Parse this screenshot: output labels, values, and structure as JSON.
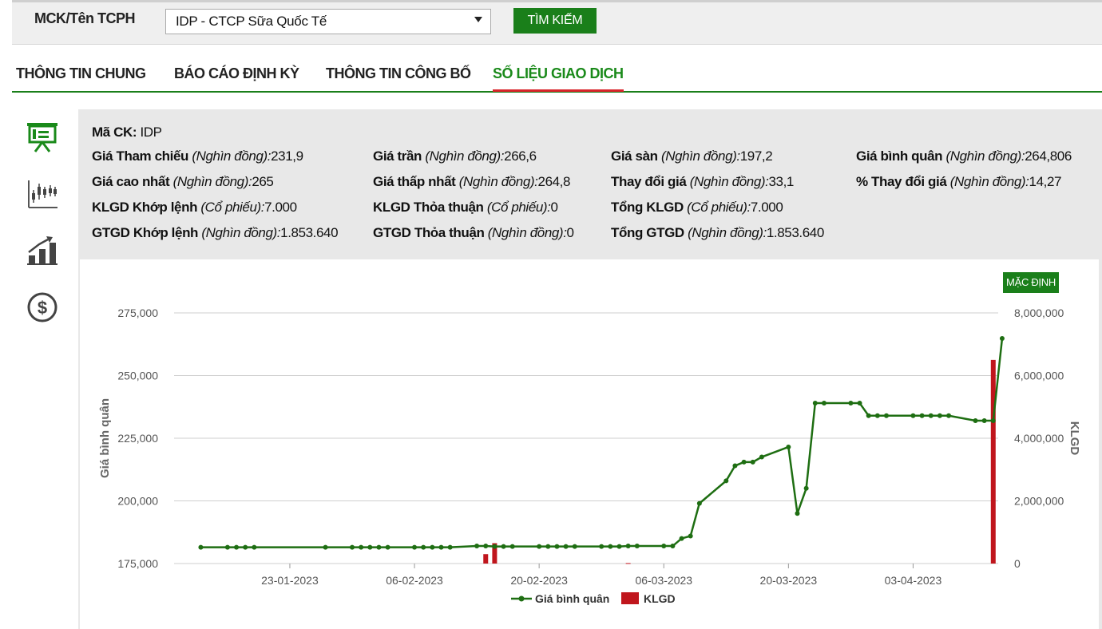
{
  "search": {
    "label": "MCK/Tên TCPH",
    "selected": "IDP - CTCP Sữa Quốc Tế",
    "button": "TÌM KIẾM"
  },
  "tabs": [
    {
      "label": "THÔNG TIN CHUNG",
      "active": false
    },
    {
      "label": "BÁO CÁO ĐỊNH KỲ",
      "active": false
    },
    {
      "label": "THÔNG TIN CÔNG BỐ",
      "active": false
    },
    {
      "label": "SỐ LIỆU GIAO DỊCH",
      "active": true
    }
  ],
  "sidebar_icons": [
    "presentation-board-icon",
    "candlestick-chart-icon",
    "bar-growth-chart-icon",
    "dollar-coin-icon"
  ],
  "info": {
    "ma_ck": {
      "label": "Mã CK:",
      "value": "IDP"
    },
    "rows": [
      [
        {
          "label": "Giá Tham chiếu",
          "unit": "(Nghìn đồng):",
          "value": "231,9"
        },
        {
          "label": "Giá trần",
          "unit": "(Nghìn đồng):",
          "value": "266,6"
        },
        {
          "label": "Giá sàn",
          "unit": "(Nghìn đồng):",
          "value": "197,2"
        },
        {
          "label": "Giá bình quân",
          "unit": "(Nghìn đồng):",
          "value": "264,806"
        }
      ],
      [
        {
          "label": "Giá cao nhất",
          "unit": "(Nghìn đồng):",
          "value": "265"
        },
        {
          "label": "Giá thấp nhất",
          "unit": "(Nghìn đồng):",
          "value": "264,8"
        },
        {
          "label": "Thay đổi giá",
          "unit": "(Nghìn đồng):",
          "value": "33,1"
        },
        {
          "label": "% Thay đổi giá",
          "unit": "(Nghìn đồng):",
          "value": "14,27"
        }
      ],
      [
        {
          "label": "KLGD Khớp lệnh",
          "unit": "(Cổ phiếu):",
          "value": "7.000"
        },
        {
          "label": "KLGD Thỏa thuận",
          "unit": "(Cổ phiếu):",
          "value": "0"
        },
        {
          "label": "Tổng KLGD",
          "unit": "(Cổ phiếu):",
          "value": "7.000"
        }
      ],
      [
        {
          "label": "GTGD Khớp lệnh",
          "unit": "(Nghìn đồng):",
          "value": "1.853.640"
        },
        {
          "label": "GTGD Thỏa thuận",
          "unit": "(Nghìn đồng):",
          "value": "0"
        },
        {
          "label": "Tổng GTGD",
          "unit": "(Nghìn đồng):",
          "value": "1.853.640"
        }
      ]
    ]
  },
  "chart_controls": {
    "default_button": "MẶC ĐỊNH"
  },
  "colors": {
    "accent_green": "#1a7f1a",
    "line_green": "#1e6e12",
    "bar_red": "#c0161d",
    "tab_underline": "#d9232a"
  },
  "chart_data": {
    "type": "line+bar",
    "xlabel": "",
    "ylabel": "Giá bình quân",
    "y2label": "KLGD",
    "ylim": [
      175000,
      275000
    ],
    "y2lim": [
      0,
      8000000
    ],
    "yticks": [
      "275,000",
      "250,000",
      "225,000",
      "200,000",
      "175,000"
    ],
    "y2ticks": [
      "8,000,000",
      "6,000,000",
      "4,000,000",
      "2,000,000",
      "0"
    ],
    "xticks": [
      "23-01-2023",
      "06-02-2023",
      "20-02-2023",
      "06-03-2023",
      "20-03-2023",
      "03-04-2023"
    ],
    "legend": [
      "Giá bình quân",
      "KLGD"
    ],
    "legend_position": "bottom",
    "series": [
      {
        "name": "Giá bình quân",
        "kind": "line",
        "points": [
          [
            "2023-01-13",
            181500
          ],
          [
            "2023-01-16",
            181500
          ],
          [
            "2023-01-17",
            181500
          ],
          [
            "2023-01-18",
            181500
          ],
          [
            "2023-01-19",
            181500
          ],
          [
            "2023-01-27",
            181500
          ],
          [
            "2023-01-30",
            181500
          ],
          [
            "2023-01-31",
            181500
          ],
          [
            "2023-02-01",
            181500
          ],
          [
            "2023-02-02",
            181500
          ],
          [
            "2023-02-03",
            181500
          ],
          [
            "2023-02-06",
            181500
          ],
          [
            "2023-02-07",
            181500
          ],
          [
            "2023-02-08",
            181500
          ],
          [
            "2023-02-09",
            181500
          ],
          [
            "2023-02-10",
            181500
          ],
          [
            "2023-02-13",
            182000
          ],
          [
            "2023-02-14",
            182000
          ],
          [
            "2023-02-15",
            181800
          ],
          [
            "2023-02-16",
            181800
          ],
          [
            "2023-02-17",
            181800
          ],
          [
            "2023-02-20",
            181800
          ],
          [
            "2023-02-21",
            181800
          ],
          [
            "2023-02-22",
            181800
          ],
          [
            "2023-02-23",
            181800
          ],
          [
            "2023-02-24",
            181800
          ],
          [
            "2023-02-27",
            181800
          ],
          [
            "2023-02-28",
            181800
          ],
          [
            "2023-03-01",
            181800
          ],
          [
            "2023-03-02",
            182000
          ],
          [
            "2023-03-03",
            182000
          ],
          [
            "2023-03-06",
            182000
          ],
          [
            "2023-03-07",
            182000
          ],
          [
            "2023-03-08",
            185000
          ],
          [
            "2023-03-09",
            186000
          ],
          [
            "2023-03-10",
            199000
          ],
          [
            "2023-03-13",
            208000
          ],
          [
            "2023-03-14",
            214000
          ],
          [
            "2023-03-15",
            215500
          ],
          [
            "2023-03-16",
            215500
          ],
          [
            "2023-03-17",
            217500
          ],
          [
            "2023-03-20",
            221500
          ],
          [
            "2023-03-21",
            195000
          ],
          [
            "2023-03-22",
            205000
          ],
          [
            "2023-03-23",
            239000
          ],
          [
            "2023-03-24",
            239000
          ],
          [
            "2023-03-27",
            239000
          ],
          [
            "2023-03-28",
            239000
          ],
          [
            "2023-03-29",
            234000
          ],
          [
            "2023-03-30",
            234000
          ],
          [
            "2023-03-31",
            234000
          ],
          [
            "2023-04-03",
            234000
          ],
          [
            "2023-04-04",
            234000
          ],
          [
            "2023-04-05",
            234000
          ],
          [
            "2023-04-06",
            234000
          ],
          [
            "2023-04-07",
            234000
          ],
          [
            "2023-04-10",
            232000
          ],
          [
            "2023-04-11",
            232000
          ],
          [
            "2023-04-12",
            232000
          ],
          [
            "2023-04-13",
            264806
          ]
        ]
      },
      {
        "name": "KLGD",
        "kind": "bar",
        "points": [
          [
            "2023-02-14",
            300000
          ],
          [
            "2023-02-15",
            650000
          ],
          [
            "2023-03-02",
            15000
          ],
          [
            "2023-04-12",
            6500000
          ]
        ]
      }
    ]
  }
}
